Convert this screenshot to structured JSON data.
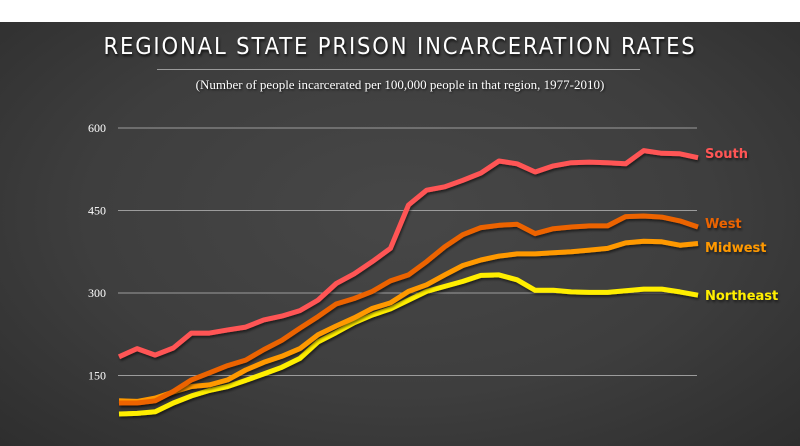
{
  "chart_data": {
    "type": "line",
    "title": "REGIONAL STATE PRISON INCARCERATION RATES",
    "subtitle": "(Number of people incarcerated per 100,000 people in that region, 1977-2010)",
    "ylim": [
      0,
      600
    ],
    "yticks": [
      600,
      450,
      300,
      150
    ],
    "grid": true,
    "legend": "direct labels at right end of lines",
    "series": [
      {
        "name": "South",
        "color": "#ff5555",
        "values": [
          184,
          199,
          187,
          200,
          227,
          227,
          233,
          238,
          251,
          258,
          268,
          287,
          317,
          335,
          357,
          381,
          460,
          487,
          493,
          505,
          518,
          540,
          535,
          520,
          531,
          537,
          538,
          537,
          535,
          559,
          554,
          553,
          546
        ]
      },
      {
        "name": "West",
        "color": "#ec6400",
        "values": [
          100,
          100,
          104,
          121,
          142,
          155,
          168,
          178,
          197,
          214,
          236,
          257,
          280,
          290,
          303,
          322,
          333,
          357,
          384,
          406,
          419,
          423,
          425,
          408,
          417,
          420,
          422,
          422,
          439,
          440,
          438,
          431,
          420
        ]
      },
      {
        "name": "Midwest",
        "color": "#ff9900",
        "values": [
          104,
          103,
          109,
          120,
          130,
          133,
          142,
          160,
          174,
          185,
          199,
          224,
          240,
          255,
          272,
          282,
          303,
          315,
          333,
          350,
          360,
          367,
          371,
          371,
          373,
          375,
          378,
          381,
          391,
          394,
          393,
          387,
          390
        ]
      },
      {
        "name": "Northeast",
        "color": "#ffee00",
        "values": [
          80,
          81,
          84,
          100,
          113,
          123,
          130,
          141,
          153,
          165,
          181,
          211,
          228,
          246,
          260,
          271,
          287,
          303,
          312,
          321,
          332,
          333,
          324,
          305,
          305,
          302,
          301,
          301,
          304,
          307,
          307,
          302,
          296
        ]
      }
    ]
  }
}
